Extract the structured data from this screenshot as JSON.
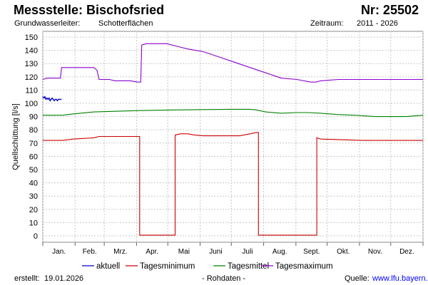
{
  "header": {
    "title": "Messstelle: Bischofsried",
    "nr": "Nr: 25502",
    "aquifer_label": "Grundwasserleiter:",
    "aquifer_value": "Schotterflächen",
    "period_label": "Zeitraum:",
    "period_value": "2011 - 2026"
  },
  "footer": {
    "created_label": "erstellt:",
    "created_value": "19.01.2026",
    "raw_note": "- Rohdaten -",
    "source_label": "Quelle:",
    "source_url": "www.lfu.bayern.de"
  },
  "chart_data": {
    "type": "line",
    "ylabel": "Quellschüttung [l/s]",
    "ylim": [
      0,
      150
    ],
    "yticks": [
      0,
      10,
      20,
      30,
      40,
      50,
      60,
      70,
      80,
      90,
      100,
      110,
      120,
      130,
      140,
      150
    ],
    "xlim_days": [
      1,
      366
    ],
    "categories": [
      "Jan.",
      "Feb.",
      "Mrz.",
      "Apr.",
      "Mai",
      "Juni",
      "Juli",
      "Aug.",
      "Sept.",
      "Okt.",
      "Nov.",
      "Dez."
    ],
    "grid": true,
    "legend_position": "bottom",
    "series": [
      {
        "name": "aktuell",
        "color": "#0000cc",
        "points": [
          [
            1,
            105
          ],
          [
            2,
            104
          ],
          [
            3,
            105
          ],
          [
            4,
            103
          ],
          [
            5,
            104
          ],
          [
            6,
            103
          ],
          [
            7,
            104
          ],
          [
            8,
            102
          ],
          [
            9,
            103
          ],
          [
            10,
            104
          ],
          [
            11,
            103
          ],
          [
            12,
            102
          ],
          [
            13,
            103
          ],
          [
            14,
            103
          ],
          [
            15,
            102
          ],
          [
            16,
            103
          ],
          [
            17,
            103
          ],
          [
            18,
            103
          ],
          [
            19,
            103
          ]
        ]
      },
      {
        "name": "Tagesminimum",
        "color": "#cc0000",
        "points": [
          [
            1,
            72
          ],
          [
            20,
            72
          ],
          [
            30,
            73
          ],
          [
            40,
            73.5
          ],
          [
            50,
            74
          ],
          [
            55,
            75
          ],
          [
            70,
            75
          ],
          [
            85,
            75
          ],
          [
            94,
            75
          ],
          [
            94,
            0.5
          ],
          [
            128,
            0.5
          ],
          [
            128,
            76
          ],
          [
            133,
            77
          ],
          [
            140,
            77
          ],
          [
            147,
            76
          ],
          [
            155,
            75.5
          ],
          [
            175,
            75.5
          ],
          [
            190,
            75.5
          ],
          [
            200,
            77
          ],
          [
            206,
            78
          ],
          [
            208,
            78
          ],
          [
            208,
            0.5
          ],
          [
            264,
            0.5
          ],
          [
            264,
            74
          ],
          [
            268,
            73
          ],
          [
            290,
            72.5
          ],
          [
            310,
            72
          ],
          [
            366,
            72
          ]
        ]
      },
      {
        "name": "Tagesmittel",
        "color": "#008000",
        "points": [
          [
            1,
            91
          ],
          [
            20,
            91
          ],
          [
            30,
            92
          ],
          [
            50,
            93.5
          ],
          [
            70,
            94
          ],
          [
            94,
            94.5
          ],
          [
            128,
            95
          ],
          [
            180,
            95.5
          ],
          [
            200,
            95.5
          ],
          [
            206,
            95
          ],
          [
            215,
            93.5
          ],
          [
            230,
            92.5
          ],
          [
            245,
            93
          ],
          [
            255,
            93
          ],
          [
            268,
            92.5
          ],
          [
            285,
            91.5
          ],
          [
            300,
            91
          ],
          [
            320,
            90
          ],
          [
            350,
            90
          ],
          [
            366,
            91
          ]
        ]
      },
      {
        "name": "Tagesmaximum",
        "color": "#8b00d1",
        "points": [
          [
            1,
            118
          ],
          [
            5,
            119
          ],
          [
            18,
            119
          ],
          [
            19,
            127
          ],
          [
            40,
            127
          ],
          [
            50,
            127
          ],
          [
            53,
            125
          ],
          [
            55,
            118
          ],
          [
            65,
            118
          ],
          [
            70,
            117
          ],
          [
            85,
            117
          ],
          [
            92,
            116
          ],
          [
            95,
            116
          ],
          [
            96,
            144
          ],
          [
            100,
            145
          ],
          [
            120,
            145
          ],
          [
            130,
            143
          ],
          [
            140,
            141
          ],
          [
            155,
            139
          ],
          [
            170,
            135
          ],
          [
            185,
            131
          ],
          [
            200,
            127
          ],
          [
            215,
            123
          ],
          [
            230,
            119
          ],
          [
            245,
            118
          ],
          [
            258,
            116
          ],
          [
            263,
            116
          ],
          [
            268,
            117
          ],
          [
            285,
            118
          ],
          [
            320,
            118
          ],
          [
            366,
            118
          ]
        ]
      }
    ]
  }
}
